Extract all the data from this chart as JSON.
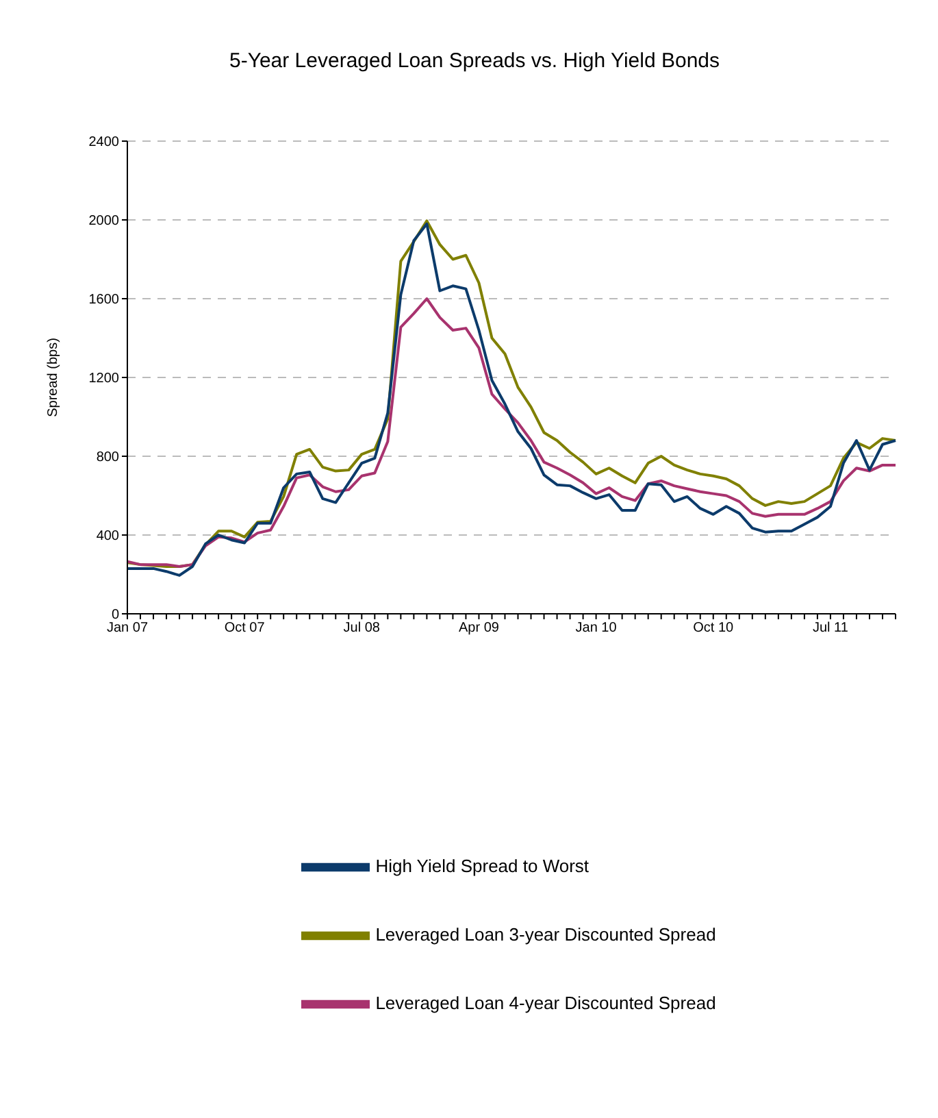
{
  "chart_data": {
    "type": "line",
    "title": "5-Year Leveraged Loan Spreads vs. High Yield Bonds",
    "ylabel": "Spread (bps)",
    "categories": [
      "Jan 07",
      null,
      null,
      null,
      null,
      null,
      null,
      null,
      null,
      "Oct 07",
      null,
      null,
      null,
      null,
      null,
      null,
      null,
      null,
      "Jul 08",
      null,
      null,
      null,
      null,
      null,
      null,
      null,
      null,
      "Apr 09",
      null,
      null,
      null,
      null,
      null,
      null,
      null,
      null,
      "Jan 10",
      null,
      null,
      null,
      null,
      null,
      null,
      null,
      null,
      "Oct 10",
      null,
      null,
      null,
      null,
      null,
      null,
      null,
      null,
      "Jul 11",
      null,
      null,
      null,
      null,
      null
    ],
    "series": [
      {
        "name": "Leveraged Loan 3-year Discounted Spread",
        "color": "#808000",
        "values": [
          260,
          250,
          245,
          240,
          240,
          250,
          350,
          420,
          420,
          390,
          465,
          470,
          595,
          810,
          835,
          745,
          725,
          730,
          810,
          835,
          990,
          1790,
          1890,
          1995,
          1875,
          1800,
          1820,
          1680,
          1400,
          1320,
          1150,
          1050,
          920,
          880,
          820,
          770,
          710,
          740,
          700,
          665,
          765,
          800,
          755,
          730,
          710,
          700,
          685,
          650,
          585,
          550,
          570,
          560,
          570,
          610,
          650,
          790,
          870,
          840,
          890,
          880
        ]
      },
      {
        "name": "Leveraged Loan 4-year Discounted Spread",
        "color": "#a8336e",
        "values": [
          265,
          250,
          250,
          250,
          240,
          250,
          345,
          390,
          385,
          365,
          410,
          425,
          545,
          690,
          705,
          645,
          620,
          630,
          700,
          715,
          875,
          1455,
          1525,
          1600,
          1505,
          1440,
          1450,
          1350,
          1115,
          1040,
          970,
          880,
          770,
          740,
          705,
          665,
          610,
          640,
          595,
          575,
          660,
          675,
          650,
          635,
          620,
          610,
          600,
          570,
          510,
          495,
          505,
          505,
          505,
          535,
          570,
          675,
          740,
          725,
          755,
          755
        ]
      },
      {
        "name": "High Yield Spread to Worst",
        "color": "#0c3b6b",
        "values": [
          230,
          230,
          230,
          215,
          195,
          240,
          355,
          400,
          375,
          360,
          460,
          460,
          640,
          710,
          720,
          585,
          565,
          665,
          765,
          790,
          1020,
          1620,
          1895,
          1980,
          1640,
          1665,
          1650,
          1440,
          1185,
          1065,
          925,
          840,
          705,
          655,
          650,
          615,
          585,
          605,
          525,
          525,
          660,
          655,
          570,
          595,
          535,
          505,
          545,
          510,
          435,
          415,
          420,
          420,
          455,
          490,
          545,
          765,
          880,
          730,
          860,
          880
        ]
      }
    ],
    "ylim": [
      0,
      2400
    ],
    "yticks": [
      0,
      400,
      800,
      1200,
      1600,
      2000,
      2400
    ],
    "grid": "y",
    "legend": "bottom",
    "marker": "none",
    "line_style": "solid"
  }
}
